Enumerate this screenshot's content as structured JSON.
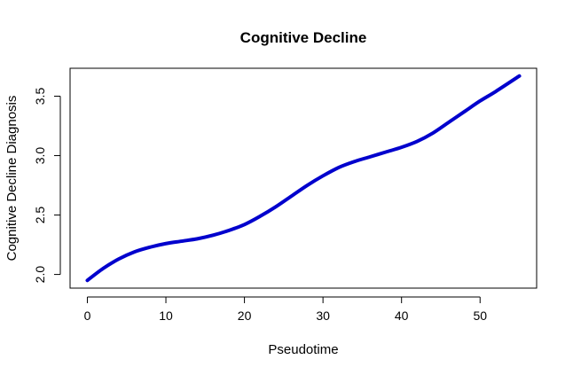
{
  "chart_data": {
    "type": "line",
    "title": "Cognitive Decline",
    "xlabel": "Pseudotime",
    "ylabel": "Cognitive Decline Diagnosis",
    "xlim": [
      -2.2,
      57.2
    ],
    "ylim": [
      1.885,
      3.735
    ],
    "x_ticks": [
      "0",
      "10",
      "20",
      "30",
      "40",
      "50"
    ],
    "y_ticks": [
      "2.0",
      "2.5",
      "3.0",
      "3.5"
    ],
    "grid": false,
    "legend": "none",
    "line_color": "#0000CD",
    "series": [
      {
        "x": [
          0,
          2,
          4,
          6,
          8,
          10,
          12,
          14,
          16,
          18,
          20,
          22,
          24,
          26,
          28,
          30,
          32,
          34,
          36,
          38,
          40,
          42,
          44,
          46,
          48,
          50,
          52,
          55
        ],
        "y": [
          1.95,
          2.05,
          2.13,
          2.19,
          2.23,
          2.26,
          2.28,
          2.3,
          2.33,
          2.37,
          2.42,
          2.49,
          2.57,
          2.66,
          2.75,
          2.83,
          2.9,
          2.95,
          2.99,
          3.03,
          3.07,
          3.12,
          3.19,
          3.28,
          3.37,
          3.46,
          3.54,
          3.67
        ]
      }
    ]
  }
}
